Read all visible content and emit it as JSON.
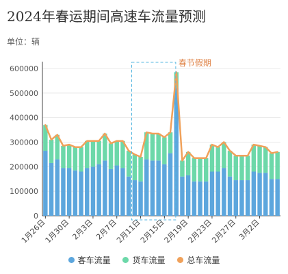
{
  "page": {
    "title": "2024年春运期间高速车流量预测",
    "unit_label": "单位：辆"
  },
  "chart_data": {
    "type": "bar",
    "stacked": true,
    "title": "2024年春运期间高速车流量预测",
    "ylabel": "单位：辆",
    "ylim": [
      0,
      600000
    ],
    "yticks": [
      0,
      100000,
      200000,
      300000,
      400000,
      500000,
      600000
    ],
    "grid": true,
    "legend_position": "bottom",
    "categories": [
      "1月26日",
      "1月27日",
      "1月28日",
      "1月29日",
      "1月30日",
      "1月31日",
      "2月1日",
      "2月2日",
      "2月3日",
      "2月4日",
      "2月5日",
      "2月6日",
      "2月7日",
      "2月8日",
      "2月9日",
      "2月10日",
      "2月11日",
      "2月12日",
      "2月13日",
      "2月14日",
      "2月15日",
      "2月16日",
      "2月17日",
      "2月18日",
      "2月19日",
      "2月20日",
      "2月21日",
      "2月22日",
      "2月23日",
      "2月24日",
      "2月25日",
      "2月26日",
      "2月27日",
      "2月28日",
      "2月29日",
      "3月1日",
      "3月2日",
      "3月3日",
      "3月4日",
      "3月5日"
    ],
    "xtick_labels": [
      "1月26日",
      "1月30日",
      "2月3日",
      "2月7日",
      "2月11日",
      "2月15日",
      "2月19日",
      "2月23日",
      "2月27日",
      "3月2日"
    ],
    "series": [
      {
        "name": "客车流量",
        "kind": "bar",
        "color": "#5ca6dd",
        "values": [
          265000,
          215000,
          230000,
          195000,
          195000,
          185000,
          180000,
          195000,
          200000,
          210000,
          225000,
          190000,
          205000,
          195000,
          160000,
          145000,
          140000,
          230000,
          225000,
          225000,
          210000,
          255000,
          520000,
          160000,
          165000,
          140000,
          140000,
          140000,
          180000,
          180000,
          195000,
          160000,
          145000,
          145000,
          145000,
          180000,
          175000,
          175000,
          150000,
          150000
        ]
      },
      {
        "name": "货车流量",
        "kind": "bar",
        "color": "#6cd8a9",
        "values": [
          105000,
          95000,
          100000,
          90000,
          95000,
          95000,
          100000,
          110000,
          105000,
          95000,
          110000,
          105000,
          100000,
          110000,
          105000,
          105000,
          100000,
          110000,
          110000,
          110000,
          110000,
          85000,
          65000,
          65000,
          95000,
          95000,
          95000,
          95000,
          110000,
          100000,
          105000,
          105000,
          100000,
          100000,
          100000,
          110000,
          110000,
          105000,
          105000,
          110000
        ]
      },
      {
        "name": "总车流量",
        "kind": "line",
        "color": "#f0a15a",
        "values": [
          370000,
          310000,
          330000,
          285000,
          290000,
          280000,
          280000,
          305000,
          305000,
          305000,
          335000,
          295000,
          305000,
          305000,
          265000,
          250000,
          240000,
          340000,
          335000,
          335000,
          320000,
          340000,
          585000,
          225000,
          260000,
          235000,
          235000,
          235000,
          290000,
          280000,
          300000,
          265000,
          245000,
          245000,
          245000,
          290000,
          285000,
          280000,
          255000,
          260000
        ]
      }
    ],
    "annotation": {
      "label": "春节假期",
      "start": "2月10日",
      "end": "2月17日"
    }
  }
}
